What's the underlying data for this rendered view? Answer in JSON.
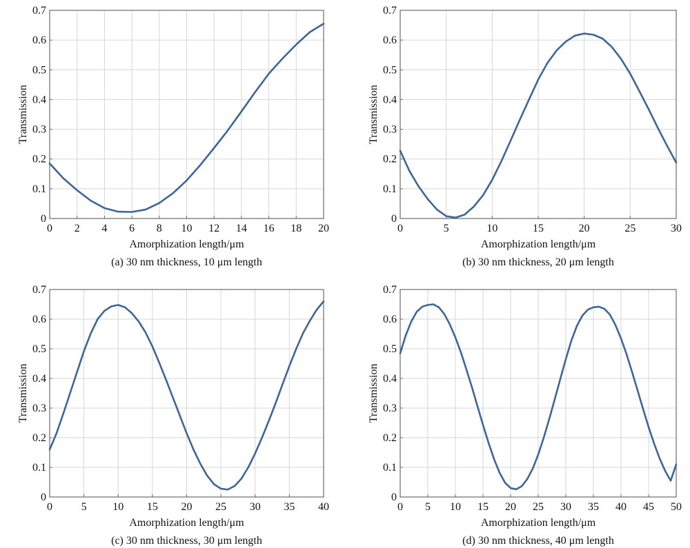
{
  "line_color": "#3d6597",
  "chart_data": [
    {
      "type": "line",
      "caption": "(a) 30 nm thickness, 10 μm length",
      "xlabel": "Amorphization length/μm",
      "ylabel": "Transmission",
      "xlim": [
        0,
        20
      ],
      "ylim": [
        0,
        0.7
      ],
      "xticks": [
        0,
        2,
        4,
        6,
        8,
        10,
        12,
        14,
        16,
        18,
        20
      ],
      "yticks": [
        0,
        0.1,
        0.2,
        0.3,
        0.4,
        0.5,
        0.6,
        0.7
      ],
      "grid": true,
      "series": [
        {
          "name": "Transmission",
          "x": [
            0,
            1,
            2,
            3,
            4,
            5,
            6,
            7,
            8,
            9,
            10,
            11,
            12,
            13,
            14,
            15,
            16,
            17,
            18,
            19,
            20
          ],
          "y": [
            0.185,
            0.135,
            0.095,
            0.06,
            0.035,
            0.023,
            0.022,
            0.03,
            0.052,
            0.085,
            0.128,
            0.18,
            0.237,
            0.296,
            0.36,
            0.425,
            0.487,
            0.538,
            0.585,
            0.627,
            0.655
          ]
        }
      ]
    },
    {
      "type": "line",
      "caption": "(b) 30 nm thickness, 20 μm length",
      "xlabel": "Amorphization length/μm",
      "ylabel": "Transmission",
      "xlim": [
        0,
        30
      ],
      "ylim": [
        0,
        0.7
      ],
      "xticks": [
        0,
        5,
        10,
        15,
        20,
        25,
        30
      ],
      "yticks": [
        0,
        0.1,
        0.2,
        0.3,
        0.4,
        0.5,
        0.6,
        0.7
      ],
      "grid": true,
      "series": [
        {
          "name": "Transmission",
          "x": [
            0,
            1,
            2,
            3,
            4,
            5,
            6,
            7,
            8,
            9,
            10,
            11,
            12,
            13,
            14,
            15,
            16,
            17,
            18,
            19,
            20,
            21,
            22,
            23,
            24,
            25,
            26,
            27,
            28,
            29,
            30
          ],
          "y": [
            0.228,
            0.16,
            0.108,
            0.065,
            0.03,
            0.008,
            0.003,
            0.013,
            0.04,
            0.078,
            0.13,
            0.193,
            0.262,
            0.332,
            0.4,
            0.467,
            0.523,
            0.565,
            0.595,
            0.615,
            0.622,
            0.618,
            0.605,
            0.577,
            0.537,
            0.487,
            0.428,
            0.368,
            0.305,
            0.245,
            0.188
          ]
        }
      ]
    },
    {
      "type": "line",
      "caption": "(c) 30 nm thickness, 30 μm length",
      "xlabel": "Amorphization length/μm",
      "ylabel": "Transmission",
      "xlim": [
        0,
        40
      ],
      "ylim": [
        0,
        0.7
      ],
      "xticks": [
        0,
        5,
        10,
        15,
        20,
        25,
        30,
        35,
        40
      ],
      "yticks": [
        0,
        0.1,
        0.2,
        0.3,
        0.4,
        0.5,
        0.6,
        0.7
      ],
      "grid": true,
      "series": [
        {
          "name": "Transmission",
          "x": [
            0,
            1,
            2,
            3,
            4,
            5,
            6,
            7,
            8,
            9,
            10,
            11,
            12,
            13,
            14,
            15,
            16,
            17,
            18,
            19,
            20,
            21,
            22,
            23,
            24,
            25,
            26,
            27,
            28,
            29,
            30,
            31,
            32,
            33,
            34,
            35,
            36,
            37,
            38,
            39,
            40
          ],
          "y": [
            0.16,
            0.215,
            0.282,
            0.352,
            0.422,
            0.492,
            0.552,
            0.6,
            0.628,
            0.643,
            0.648,
            0.64,
            0.62,
            0.592,
            0.555,
            0.508,
            0.453,
            0.395,
            0.335,
            0.275,
            0.215,
            0.16,
            0.112,
            0.072,
            0.043,
            0.028,
            0.025,
            0.037,
            0.062,
            0.1,
            0.147,
            0.2,
            0.257,
            0.317,
            0.38,
            0.442,
            0.5,
            0.553,
            0.595,
            0.632,
            0.66
          ]
        }
      ]
    },
    {
      "type": "line",
      "caption": "(d) 30 nm thickness, 40 μm length",
      "xlabel": "Amorphization length/μm",
      "ylabel": "Transmission",
      "xlim": [
        0,
        50
      ],
      "ylim": [
        0,
        0.7
      ],
      "xticks": [
        0,
        5,
        10,
        15,
        20,
        25,
        30,
        35,
        40,
        45,
        50
      ],
      "yticks": [
        0,
        0.1,
        0.2,
        0.3,
        0.4,
        0.5,
        0.6,
        0.7
      ],
      "grid": true,
      "series": [
        {
          "name": "Transmission",
          "x": [
            0,
            1,
            2,
            3,
            4,
            5,
            6,
            7,
            8,
            9,
            10,
            11,
            12,
            13,
            14,
            15,
            16,
            17,
            18,
            19,
            20,
            21,
            22,
            23,
            24,
            25,
            26,
            27,
            28,
            29,
            30,
            31,
            32,
            33,
            34,
            35,
            36,
            37,
            38,
            39,
            40,
            41,
            42,
            43,
            44,
            45,
            46,
            47,
            48,
            49,
            50
          ],
          "y": [
            0.485,
            0.545,
            0.592,
            0.625,
            0.642,
            0.648,
            0.65,
            0.64,
            0.617,
            0.582,
            0.538,
            0.488,
            0.43,
            0.37,
            0.306,
            0.243,
            0.183,
            0.128,
            0.082,
            0.048,
            0.03,
            0.026,
            0.036,
            0.06,
            0.095,
            0.143,
            0.2,
            0.263,
            0.33,
            0.398,
            0.465,
            0.527,
            0.577,
            0.612,
            0.632,
            0.64,
            0.642,
            0.635,
            0.615,
            0.58,
            0.535,
            0.482,
            0.422,
            0.36,
            0.297,
            0.236,
            0.18,
            0.13,
            0.088,
            0.055,
            0.11
          ]
        }
      ]
    }
  ]
}
